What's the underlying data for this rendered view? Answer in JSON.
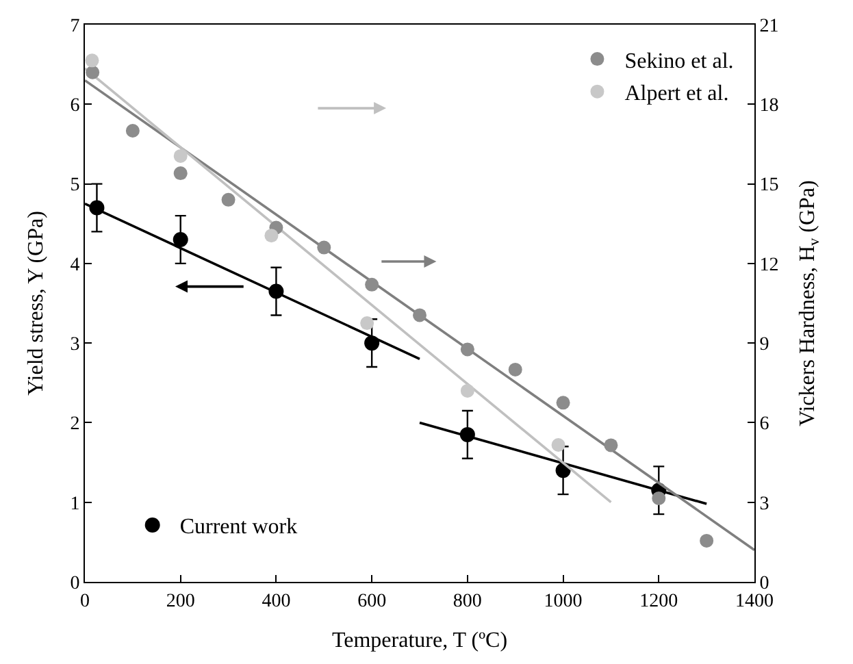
{
  "chart_data": {
    "type": "scatter",
    "xlabel": "Temperature, T (ºC)",
    "ylabel": "Yield stress, Y (GPa)",
    "y2label": "Vickers Hardness, H$_{v}$ (GPa)",
    "xlim": [
      0,
      1400
    ],
    "xticks": [
      0,
      200,
      400,
      600,
      800,
      1000,
      1200,
      1400
    ],
    "ylim": [
      0,
      7
    ],
    "yticks": [
      0,
      1,
      2,
      3,
      4,
      5,
      6,
      7
    ],
    "y2lim": [
      0,
      21
    ],
    "y2ticks": [
      0,
      3,
      6,
      9,
      12,
      15,
      18,
      21
    ],
    "legend": "top right",
    "marker": "circle",
    "series": [
      {
        "type": "line",
        "marker": "none",
        "axis": "y2",
        "color": "#7f7f7f",
        "x": [
          0,
          1400
        ],
        "values": [
          18.9,
          1.2
        ]
      },
      {
        "type": "line",
        "marker": "none",
        "axis": "y2",
        "color": "#c0c0c0",
        "x": [
          0,
          1100
        ],
        "values": [
          19.35,
          3.0
        ]
      },
      {
        "type": "line",
        "marker": "none",
        "axis": "y",
        "color": "#000000",
        "x": [
          0,
          700
        ],
        "values": [
          4.75,
          2.8
        ]
      },
      {
        "type": "line",
        "marker": "none",
        "axis": "y",
        "color": "#000000",
        "x": [
          700,
          1300
        ],
        "values": [
          2.0,
          0.98
        ]
      },
      {
        "name": "Sekino et al.",
        "axis": "y2",
        "color": "#8c8c8c",
        "x": [
          16,
          100,
          200,
          300,
          400,
          500,
          600,
          700,
          800,
          900,
          1000,
          1100,
          1200,
          1300
        ],
        "values": [
          19.2,
          17.0,
          15.4,
          14.4,
          13.35,
          12.6,
          11.2,
          10.05,
          8.76,
          8.0,
          6.75,
          5.15,
          3.15,
          1.55
        ]
      },
      {
        "name": "Alpert et al.",
        "axis": "y2",
        "color": "#c8c8c8",
        "x": [
          15,
          200,
          390,
          590,
          800,
          990
        ],
        "values": [
          19.65,
          16.05,
          13.05,
          9.75,
          7.2,
          5.16
        ]
      },
      {
        "name": "Current work",
        "axis": "y",
        "color": "#000000",
        "x": [
          25,
          200,
          400,
          600,
          800,
          1000,
          1200
        ],
        "values": [
          4.7,
          4.3,
          3.65,
          3.0,
          1.85,
          1.4,
          1.15
        ],
        "errors": [
          0.3,
          0.3,
          0.3,
          0.3,
          0.3,
          0.3,
          0.3
        ]
      }
    ]
  }
}
